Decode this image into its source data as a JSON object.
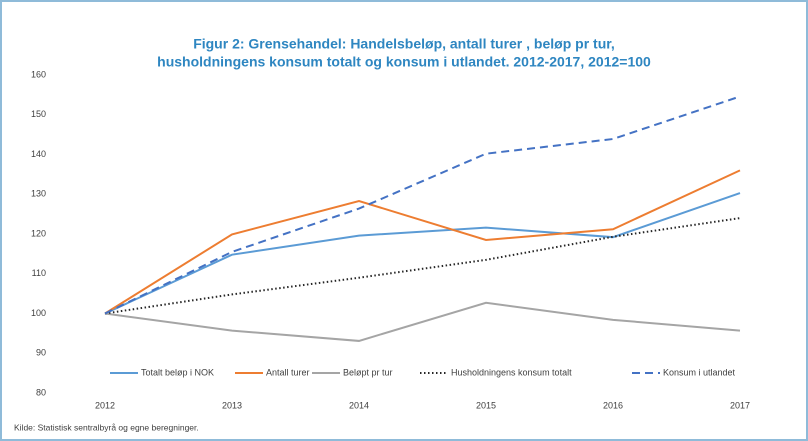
{
  "chart_data": {
    "type": "line",
    "title": [
      "Figur 2: Grensehandel: Handelsbeløp, antall turer , beløp pr tur,",
      "husholdningens konsum totalt og konsum i utlandet. 2012-2017, 2012=100"
    ],
    "categories": [
      "2012",
      "2013",
      "2014",
      "2015",
      "2016",
      "2017"
    ],
    "series": [
      {
        "name": "Totalt beløp i NOK",
        "color": "#5b9bd5",
        "style": "solid",
        "values": [
          100,
          114.8,
          119.6,
          121.6,
          119.2,
          130.3
        ]
      },
      {
        "name": "Antall turer",
        "color": "#ed7d31",
        "style": "solid",
        "values": [
          100,
          119.9,
          128.3,
          118.5,
          121.2,
          136.0
        ]
      },
      {
        "name": "Beløpt pr tur",
        "color": "#a5a5a5",
        "style": "solid",
        "values": [
          100,
          95.7,
          93.1,
          102.7,
          98.4,
          95.7
        ]
      },
      {
        "name": "Husholdningens konsum totalt",
        "color": "#262626",
        "style": "dotted",
        "values": [
          100,
          104.8,
          109.0,
          113.5,
          119.3,
          124.0
        ]
      },
      {
        "name": "Konsum i utlandet",
        "color": "#4472c4",
        "style": "dashed",
        "values": [
          100,
          115.5,
          126.4,
          140.2,
          143.9,
          154.6
        ]
      }
    ],
    "ylim": [
      80,
      160
    ],
    "yticks": [
      80,
      90,
      100,
      110,
      120,
      130,
      140,
      150,
      160
    ],
    "grid": false,
    "legend": "bottom",
    "source": "Kilde: Statistisk sentralbyrå og egne beregninger."
  }
}
